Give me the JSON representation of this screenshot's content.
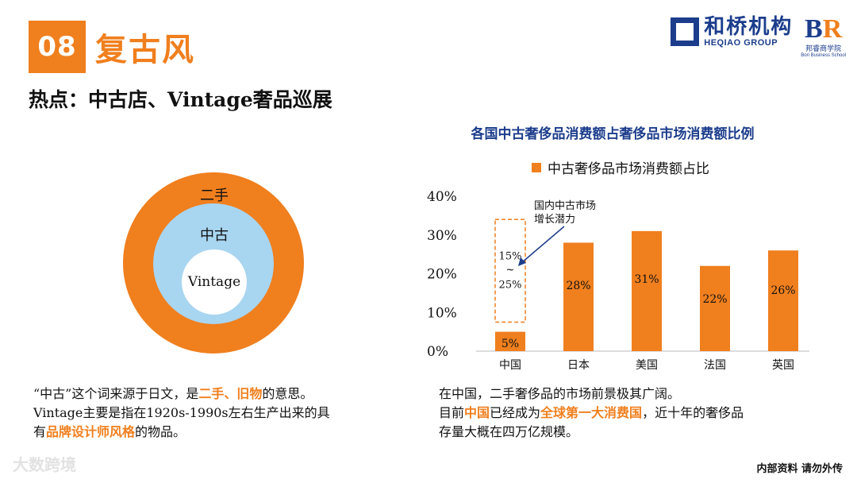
{
  "header": {
    "number": "08",
    "title": "复古风",
    "subtitle": "热点：中古店、Vintage奢品巡展",
    "logo_cn": "和桥机构",
    "logo_en": "HEQIAO GROUP",
    "br_logo_b": "B",
    "br_logo_r": "R",
    "br_logo_cn": "邦睿商学院",
    "br_logo_en": "Bori Business School"
  },
  "circles": {
    "outer_label": "二手",
    "middle_label": "中古",
    "inner_label": "Vintage",
    "colors": {
      "outer": "#f07f1e",
      "middle": "#a8d5f0",
      "inner": "#ffffff"
    }
  },
  "left_text": {
    "line1_a": "“中古”这个词来源于日文，是",
    "line1_hl": "二手、旧物",
    "line1_b": "的意思。",
    "line2": "Vintage主要是指在1920s-1990s左右生产出来的具",
    "line3_a": "有",
    "line3_hl": "品牌设计师风格",
    "line3_b": "的物品。"
  },
  "right_text": {
    "line1": "在中国，二手奢侈品的市场前景极其广阔。",
    "line2_a": "目前",
    "line2_hl1": "中国",
    "line2_b": "已经成为",
    "line2_hl2": "全球第一大消费国",
    "line2_c": "，近十年的奢侈品",
    "line3": "存量大概在四万亿规模。"
  },
  "chart_data": {
    "type": "bar",
    "title": "各国中古奢侈品消费额占奢侈品市场消费额比例",
    "categories": [
      "中国",
      "日本",
      "美国",
      "法国",
      "英国"
    ],
    "series": [
      {
        "name": "中古奢侈品市场消费额占比",
        "values": [
          5,
          28,
          31,
          22,
          26
        ],
        "labels": [
          "5%",
          "28%",
          "31%",
          "22%",
          "26%"
        ]
      }
    ],
    "ylim": [
      0,
      40
    ],
    "yticks": [
      0,
      10,
      20,
      30,
      40
    ],
    "ytick_labels": [
      "0%",
      "10%",
      "20%",
      "30%",
      "40%"
    ],
    "potential_range": [
      15,
      25
    ],
    "annotation": {
      "line1": "国内中古市场",
      "line2": "增长潜力",
      "range_top": "15%",
      "range_mid": "~",
      "range_bottom": "25%"
    },
    "grid": false,
    "legend_position": "top",
    "bar_color": "#f07f1e"
  },
  "footer": {
    "watermark": "大数跨境",
    "note": "内部资料 请勿外传"
  }
}
